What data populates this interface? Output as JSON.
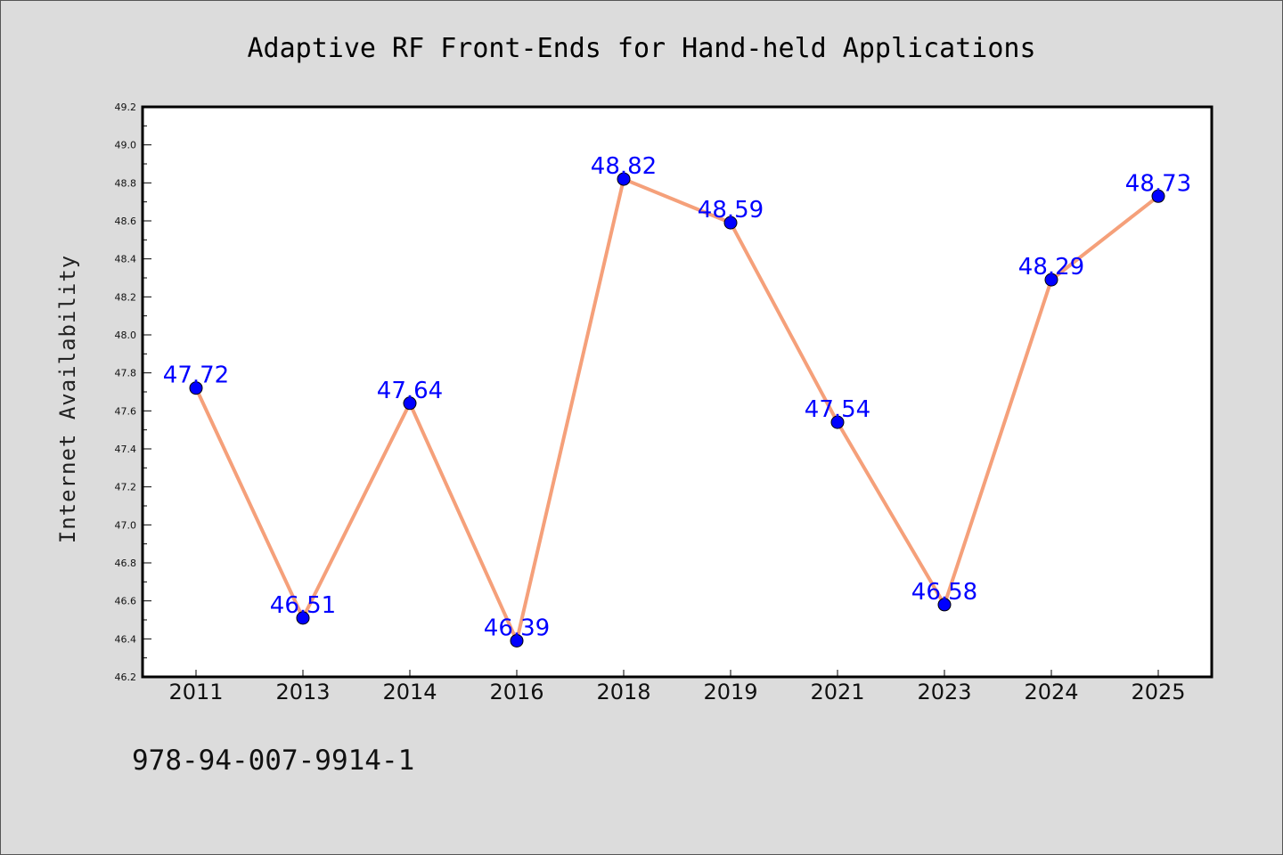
{
  "chart_data": {
    "type": "line",
    "title": "Adaptive RF Front-Ends for Hand-held Applications",
    "xlabel": "",
    "ylabel": "Internet Availability",
    "categories": [
      "2011",
      "2013",
      "2014",
      "2016",
      "2018",
      "2019",
      "2021",
      "2023",
      "2024",
      "2025"
    ],
    "series": [
      {
        "values": [
          47.72,
          46.51,
          47.64,
          46.39,
          48.82,
          48.59,
          47.54,
          46.58,
          48.29,
          48.73
        ],
        "data_labels": [
          "47.72",
          "46.51",
          "47.64",
          "46.39",
          "48.82",
          "48.59",
          "47.54",
          "46.58",
          "48.29",
          "48.73"
        ],
        "line_color": "#f5a07a",
        "marker_color": "#0000ff"
      }
    ],
    "ylim": [
      46.2,
      49.2
    ],
    "yticks": [
      "46.2",
      "46.4",
      "46.6",
      "46.8",
      "47.0",
      "47.2",
      "47.4",
      "47.6",
      "47.8",
      "48.0",
      "48.2",
      "48.4",
      "48.6",
      "48.8",
      "49.0",
      "49.2"
    ],
    "grid": false,
    "legend": "none",
    "background_color": "#dcdcdc",
    "plot_background_color": "#ffffff"
  },
  "footer_text": "978-94-007-9914-1"
}
